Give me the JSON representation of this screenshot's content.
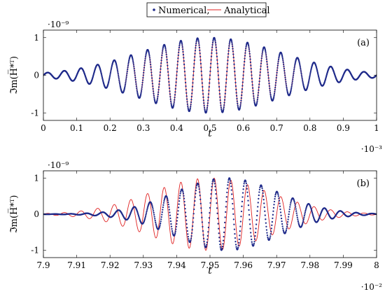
{
  "colors": {
    "numerical": "#1f2a8a",
    "analytical": "#e02020",
    "frame": "#000000"
  },
  "legend": {
    "numerical_label": "Numerical,",
    "analytical_label": "Analytical"
  },
  "chart_data": [
    {
      "type": "scatter+line",
      "tag": "(a)",
      "xlabel": "t",
      "ylabel": "ℑm(H̅*ᵀ)",
      "x_multiplier": "·10⁻³",
      "y_multiplier": "·10⁻⁹",
      "xlim": [
        0,
        1
      ],
      "ylim": [
        -1.2,
        1.2
      ],
      "xticks": [
        0,
        0.1,
        0.2,
        0.3,
        0.4,
        0.5,
        0.6,
        0.7,
        0.8,
        0.9,
        1
      ],
      "yticks": [
        -1,
        0,
        1
      ],
      "grid": false,
      "series": [
        {
          "name": "Numerical",
          "style": "markers",
          "model": {
            "amplitude": 1.0,
            "center": 0.5,
            "width": 0.3,
            "frequency": 20,
            "phase": 0
          },
          "samples": 1200
        },
        {
          "name": "Analytical",
          "style": "line",
          "model": {
            "amplitude": 1.0,
            "center": 0.5,
            "width": 0.3,
            "frequency": 20,
            "phase": 0
          }
        }
      ]
    },
    {
      "type": "scatter+line",
      "tag": "(b)",
      "xlabel": "t",
      "ylabel": "ℑm(H̅*ᵀ)",
      "x_multiplier": "·10⁻²",
      "y_multiplier": "·10⁻⁹",
      "xlim": [
        7.9,
        8.0
      ],
      "ylim": [
        -1.2,
        1.2
      ],
      "xticks": [
        7.9,
        7.91,
        7.92,
        7.93,
        7.94,
        7.95,
        7.96,
        7.97,
        7.98,
        7.99,
        8
      ],
      "yticks": [
        -1,
        0,
        1
      ],
      "grid": false,
      "series": [
        {
          "name": "Numerical",
          "style": "markers",
          "model": {
            "amplitude": 1.0,
            "center": 7.955,
            "width": 0.022,
            "frequency": 210,
            "phase": 0.5
          },
          "samples": 900
        },
        {
          "name": "Analytical",
          "style": "line",
          "model": {
            "amplitude": 1.0,
            "center": 7.95,
            "width": 0.025,
            "frequency": 200,
            "phase": 0.0
          }
        }
      ]
    }
  ]
}
